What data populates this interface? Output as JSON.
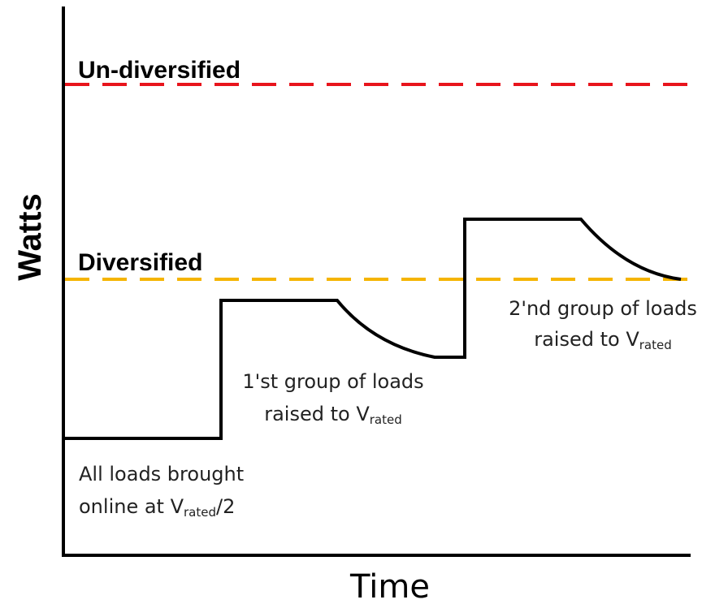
{
  "axes": {
    "y_label": "Watts",
    "x_label": "Time"
  },
  "levels": [
    {
      "label": "Un-diversified"
    },
    {
      "label": "Diversified"
    }
  ],
  "annotations": [
    {
      "line1": "All loads brought",
      "line2": "online at V",
      "sub": "rated",
      "tail": "/2"
    },
    {
      "line1": "1'st group of loads",
      "line2": "raised to V",
      "sub": "rated"
    },
    {
      "line1": "2'nd group of loads",
      "line2": "raised to V",
      "sub": "rated"
    }
  ]
}
